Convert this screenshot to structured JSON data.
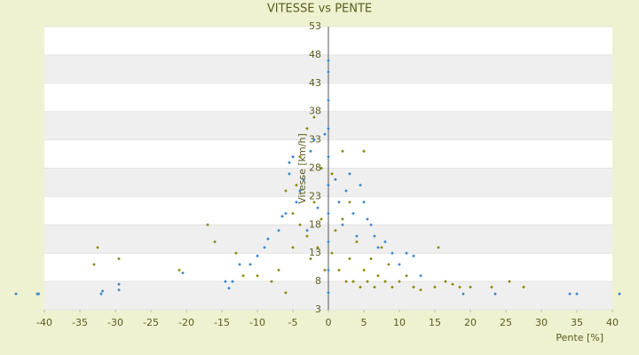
{
  "chart_data": {
    "type": "scatter",
    "title": "VITESSE vs PENTE",
    "x_label": "Pente [%]",
    "y_label": "Vitesse [km/h]",
    "xlim": [
      -40,
      40
    ],
    "ylim": [
      3,
      53
    ],
    "xticks": [
      -40,
      -35,
      -30,
      -25,
      -20,
      -15,
      -10,
      -5,
      0,
      5,
      10,
      15,
      20,
      25,
      30,
      35,
      40
    ],
    "yticks": [
      3,
      8,
      13,
      18,
      23,
      28,
      33,
      38,
      43,
      48,
      53
    ],
    "grid": true,
    "series": [
      {
        "color": "#3a87d0",
        "x": [
          -44,
          -41,
          -40.8,
          -32,
          -31.8,
          -29.5,
          -29.5,
          -20.5,
          -14.5,
          -14,
          -13.5,
          -12.5,
          -11,
          -10,
          -9,
          -8.5,
          -7,
          -6.5,
          -6,
          -5.5,
          -5.5,
          -5,
          -4.5,
          -4,
          -3.5,
          -3,
          -2.5,
          -2,
          -1.5,
          -1,
          -0.5,
          0,
          0,
          0,
          0,
          0,
          0,
          0,
          0,
          0,
          0,
          1,
          1.5,
          2,
          2.5,
          3,
          3.5,
          4,
          4.5,
          5,
          5.5,
          6,
          6.5,
          7,
          8,
          9,
          10,
          11,
          12,
          13,
          19,
          23.5,
          34,
          35,
          41
        ],
        "values": [
          5.8,
          5.8,
          5.8,
          5.8,
          6.3,
          7.5,
          6.5,
          9.5,
          8,
          6.8,
          8,
          11,
          11,
          12.5,
          14,
          15.5,
          17,
          19.5,
          20,
          27,
          29,
          30,
          22,
          24,
          26,
          17,
          31,
          33,
          21,
          28,
          34,
          6,
          10,
          15,
          20,
          25,
          30,
          35,
          40,
          45,
          47,
          26,
          22,
          18,
          24,
          27,
          20,
          16,
          25,
          22,
          19,
          18,
          16,
          14,
          15,
          13,
          11,
          13,
          12.5,
          9,
          5.8,
          5.8,
          5.8,
          5.8,
          5.8
        ]
      },
      {
        "color": "#8a8a10",
        "x": [
          -33,
          -32.5,
          -29.5,
          -21,
          -17,
          -16,
          -13,
          -12,
          -10,
          -8,
          -7,
          -6,
          -6,
          -5,
          -5,
          -4.5,
          -4,
          -4,
          -3,
          -3,
          -2.5,
          -2,
          -2,
          -1.5,
          -1,
          -1,
          -0.5,
          0.5,
          0.5,
          1,
          1.5,
          2,
          2,
          2.5,
          3,
          3,
          3.5,
          4,
          4.5,
          5,
          5,
          5.5,
          6,
          6.5,
          7,
          7.5,
          8,
          8.5,
          9,
          10,
          11,
          12,
          13,
          15,
          15.5,
          16.5,
          17.5,
          18.5,
          20,
          23,
          25.5,
          27.5
        ],
        "values": [
          11,
          14,
          12,
          10,
          18,
          15,
          13,
          9,
          9,
          8,
          10,
          6,
          24,
          14,
          20,
          25,
          18,
          30,
          16,
          35,
          12,
          22,
          37,
          14,
          19,
          28,
          10,
          13,
          27,
          17,
          10,
          19,
          31,
          8,
          12,
          22,
          8,
          15,
          7,
          31,
          10,
          8,
          12,
          7,
          9,
          14,
          8,
          11,
          7,
          8,
          9,
          7,
          6.5,
          7,
          14,
          8,
          7.5,
          7,
          7,
          7,
          8,
          7
        ]
      }
    ]
  }
}
